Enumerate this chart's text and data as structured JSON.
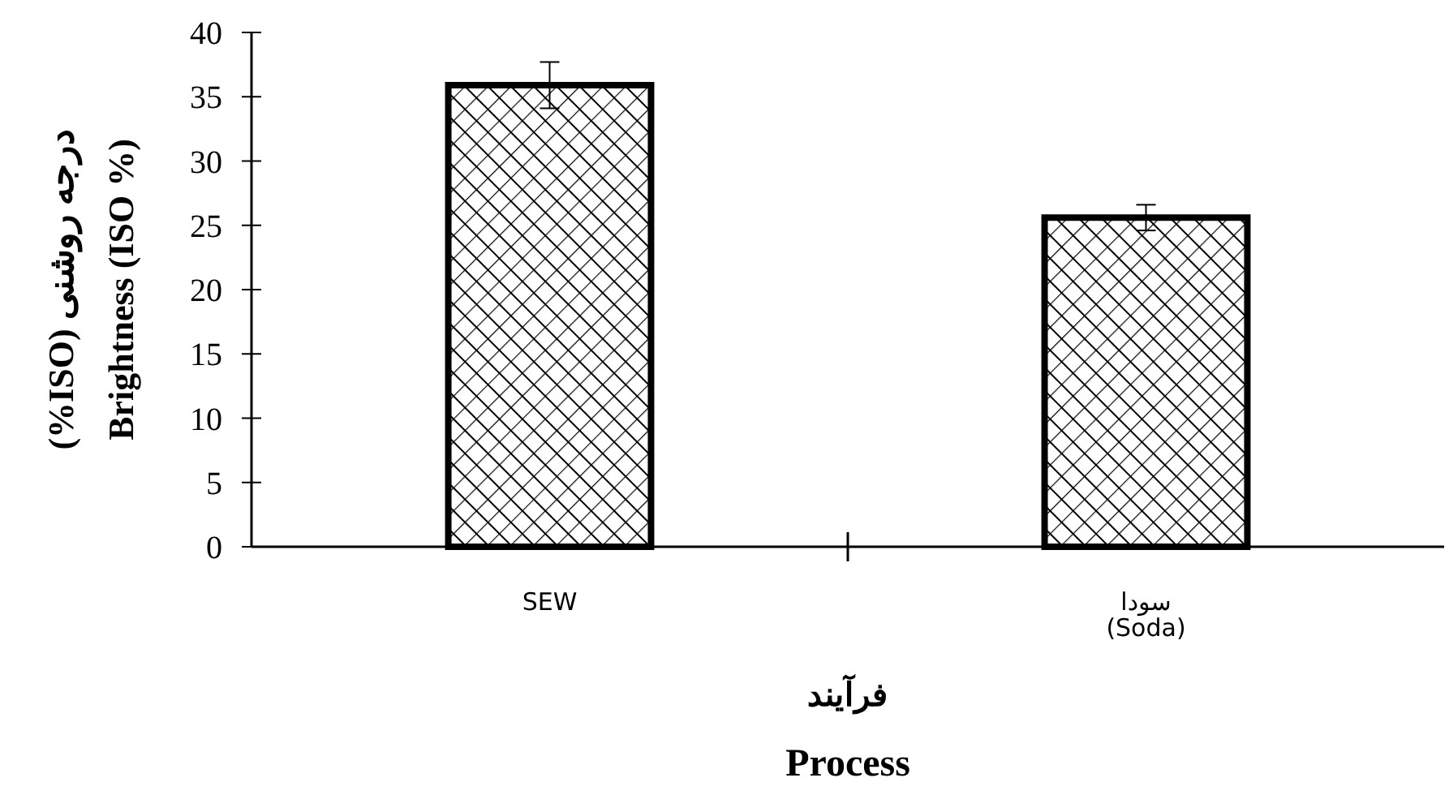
{
  "chart_data": {
    "type": "bar",
    "categories": [
      "SEW",
      "سودا\n(Soda)"
    ],
    "values": [
      35.9,
      25.6
    ],
    "errors": [
      1.8,
      1.0
    ],
    "color": "#000000",
    "ylabel": "درجه روشنی (ISO%)\nBrightness (ISO %)",
    "xlabel": "فرآیند\nProcess",
    "ylim": [
      0,
      40
    ],
    "yticks": [
      0,
      5,
      10,
      15,
      20,
      25,
      30,
      35,
      40
    ],
    "grid": false
  }
}
